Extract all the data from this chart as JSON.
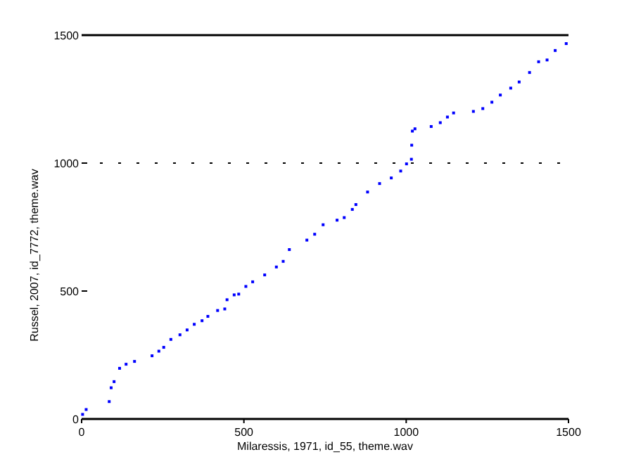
{
  "chart_data": {
    "type": "scatter",
    "xlabel": "Milaressis, 1971, id_55, theme.wav",
    "ylabel": "Russel, 2007, id_7772, theme.wav",
    "marker": "square",
    "grid": false,
    "xlim": [
      0,
      1500
    ],
    "ylim": [
      0,
      1500
    ],
    "xticks": [
      0,
      500,
      1000,
      1500
    ],
    "yticks": [
      0,
      500,
      1000,
      1500
    ],
    "ref_lines": [
      {
        "axis": "y",
        "value": 1000,
        "line_style": "dotted",
        "color": "#000000"
      },
      {
        "axis": "y",
        "value": 1500,
        "line_style": "solid",
        "color": "#000000"
      }
    ],
    "series": [
      {
        "color": "#0000ff",
        "x": [
          3,
          14,
          85,
          91,
          100,
          117,
          137,
          163,
          217,
          238,
          253,
          275,
          303,
          325,
          347,
          371,
          389,
          419,
          441,
          448,
          470,
          484,
          506,
          527,
          564,
          600,
          621,
          640,
          694,
          718,
          744,
          787,
          809,
          834,
          845,
          881,
          918,
          954,
          983,
          1001,
          1016,
          1017,
          1019,
          1027,
          1077,
          1105,
          1127,
          1146,
          1207,
          1236,
          1264,
          1290,
          1322,
          1348,
          1380,
          1408,
          1434,
          1459,
          1493
        ],
        "values": [
          18,
          37,
          68,
          122,
          146,
          198,
          214,
          225,
          247,
          265,
          280,
          311,
          329,
          348,
          370,
          384,
          401,
          424,
          430,
          466,
          485,
          488,
          518,
          536,
          563,
          594,
          616,
          662,
          699,
          722,
          759,
          777,
          787,
          819,
          838,
          887,
          920,
          942,
          969,
          997,
          1015,
          1070,
          1125,
          1134,
          1143,
          1158,
          1180,
          1196,
          1202,
          1213,
          1238,
          1266,
          1293,
          1317,
          1354,
          1396,
          1403,
          1440,
          1467
        ]
      }
    ]
  }
}
